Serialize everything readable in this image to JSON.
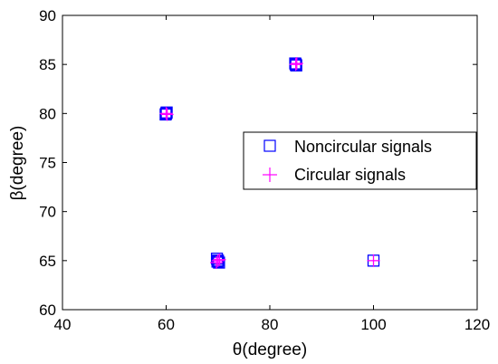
{
  "chart_data": {
    "type": "scatter",
    "xlabel": "θ(degree)",
    "ylabel": "β(degree)",
    "xlim": [
      40,
      120
    ],
    "ylim": [
      60,
      90
    ],
    "xticks": [
      40,
      60,
      80,
      100,
      120
    ],
    "yticks": [
      60,
      65,
      70,
      75,
      80,
      85,
      90
    ],
    "grid": false,
    "legend_position": "right",
    "series": [
      {
        "name": "Noncircular signals",
        "marker": "square",
        "color": "#0000ff",
        "points": [
          {
            "x": 60,
            "y": 80
          },
          {
            "x": 60.1,
            "y": 80.1
          },
          {
            "x": 59.9,
            "y": 79.9
          },
          {
            "x": 70,
            "y": 65
          },
          {
            "x": 69.8,
            "y": 65.2
          },
          {
            "x": 70.2,
            "y": 64.8
          },
          {
            "x": 69.9,
            "y": 64.9
          },
          {
            "x": 85,
            "y": 85
          },
          {
            "x": 85.1,
            "y": 84.9
          },
          {
            "x": 84.9,
            "y": 85.1
          },
          {
            "x": 100,
            "y": 65
          }
        ]
      },
      {
        "name": "Circular signals",
        "marker": "plus",
        "color": "#ff00ff",
        "points": [
          {
            "x": 60,
            "y": 80
          },
          {
            "x": 60.2,
            "y": 79.9
          },
          {
            "x": 70,
            "y": 65
          },
          {
            "x": 69.7,
            "y": 64.8
          },
          {
            "x": 70.3,
            "y": 65.1
          },
          {
            "x": 85,
            "y": 85
          },
          {
            "x": 85.2,
            "y": 85.1
          },
          {
            "x": 100,
            "y": 65
          }
        ]
      }
    ]
  }
}
